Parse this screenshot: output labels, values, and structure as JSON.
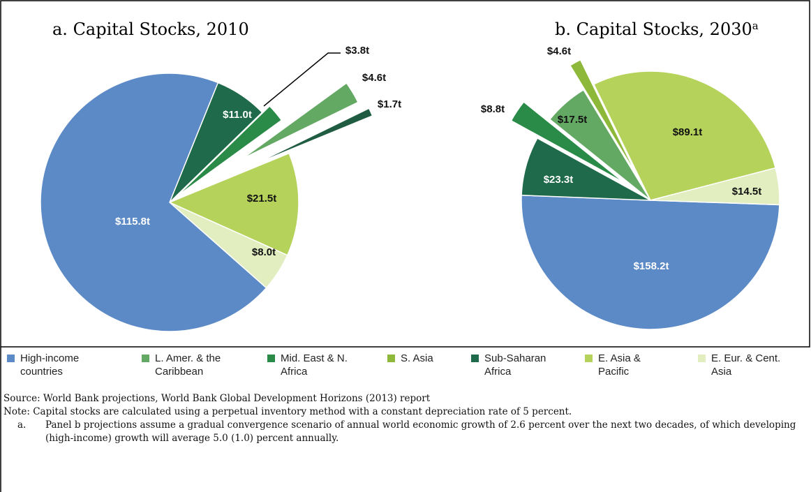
{
  "chart_data": [
    {
      "type": "pie",
      "title": "a.   Capital Stocks, 2010",
      "categories": [
        "Sub-Saharan Africa",
        "Mid. East & N. Africa",
        "L. Amer. & the Caribbean",
        "S. Asia",
        "E. Asia & Pacific",
        "E. Eur. & Cent. Asia",
        "High-income countries"
      ],
      "values": [
        11.0,
        3.8,
        4.6,
        1.7,
        21.5,
        8.0,
        115.8
      ],
      "value_labels": [
        "$11.0t",
        "$3.8t",
        "$4.6t",
        "$1.7t",
        "$21.5t",
        "$8.0t",
        "$115.8t"
      ],
      "colors": [
        "#1e6a4a",
        "#2a8a47",
        "#63a863",
        "#1f5c42",
        "#b5d25a",
        "#e2eec0",
        "#5b8ac6"
      ]
    },
    {
      "type": "pie",
      "title": "b. Capital Stocks, 2030",
      "title_note": "a",
      "categories": [
        "High-income countries",
        "Sub-Saharan Africa",
        "Mid. East & N. Africa",
        "L. Amer. & the Caribbean",
        "S. Asia",
        "E. Asia & Pacific",
        "E. Eur. & Cent. Asia"
      ],
      "values": [
        158.2,
        23.3,
        8.8,
        17.5,
        4.6,
        89.1,
        14.5
      ],
      "value_labels": [
        "$158.2t",
        "$23.3t",
        "$8.8t",
        "$17.5t",
        "$4.6t",
        "$89.1t",
        "$14.5t"
      ],
      "colors": [
        "#5b8ac6",
        "#1e6a4a",
        "#2a8a47",
        "#63a863",
        "#8db83a",
        "#b5d25a",
        "#e2eec0"
      ]
    }
  ],
  "legend": [
    {
      "name": "High-income countries",
      "color": "#5b8ac6"
    },
    {
      "name": "L. Amer. & the Caribbean",
      "color": "#63a863"
    },
    {
      "name": "Mid. East & N. Africa",
      "color": "#2a8a47"
    },
    {
      "name": "S. Asia",
      "color": "#8db83a"
    },
    {
      "name": "Sub-Saharan Africa",
      "color": "#1e6a4a"
    },
    {
      "name": "E. Asia & Pacific",
      "color": "#b5d25a"
    },
    {
      "name": "E. Eur. & Cent. Asia",
      "color": "#e2eec0"
    }
  ],
  "notes": {
    "source": "Source:  World Bank projections,  World Bank Global Development Horizons (2013) report",
    "note": "Note:  Capital stocks are calculated using a perpetual inventory method with a constant depreciation rate of 5 percent.",
    "footnote_marker": "a.",
    "footnote": "Panel b projections assume a gradual convergence scenario of annual world economic growth of 2.6 percent over the next two decades, of which developing (high-income) growth will average 5.0 (1.0) percent annually."
  }
}
